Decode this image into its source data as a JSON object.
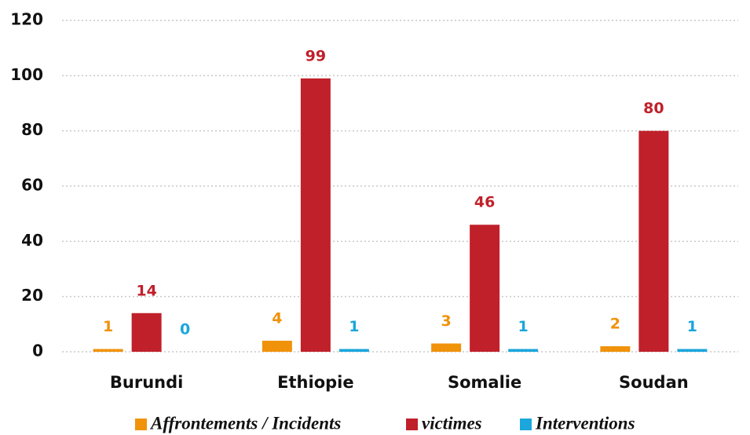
{
  "chart_data": {
    "type": "bar",
    "categories": [
      "Burundi",
      "Ethiopie",
      "Somalie",
      "Soudan"
    ],
    "series": [
      {
        "name": "Affrontements / Incidents",
        "color": "#f0920a",
        "values": [
          1,
          4,
          3,
          2
        ]
      },
      {
        "name": "victimes",
        "color": "#c0202a",
        "values": [
          14,
          99,
          46,
          80
        ]
      },
      {
        "name": "Interventions",
        "color": "#1ba6dc",
        "values": [
          0,
          1,
          1,
          1
        ]
      }
    ],
    "ylim": [
      0,
      120
    ],
    "yticks": [
      0,
      20,
      40,
      60,
      80,
      100,
      120
    ],
    "grid": true,
    "legend": "bottom"
  }
}
